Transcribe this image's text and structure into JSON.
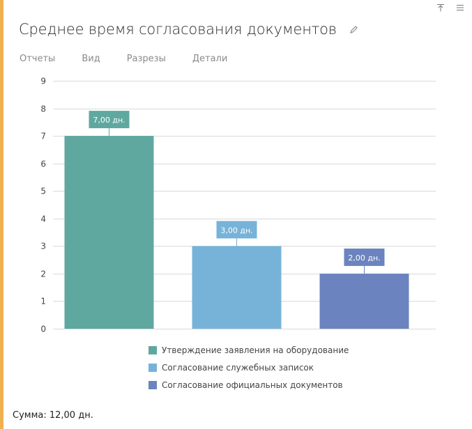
{
  "header": {
    "title": "Среднее время согласования документов"
  },
  "toolbar": {
    "pin_icon": "pin-up-icon",
    "menu_icon": "hamburger-menu-icon",
    "edit_icon": "pencil-icon"
  },
  "menu": {
    "items": [
      "Отчеты",
      "Вид",
      "Разрезы",
      "Детали"
    ]
  },
  "chart_data": {
    "type": "bar",
    "categories": [
      "Утверждение заявления на оборудование",
      "Согласование служебных записок",
      "Согласование официальных документов"
    ],
    "values": [
      7,
      3,
      2
    ],
    "data_labels": [
      "7,00 дн.",
      "3,00 дн.",
      "2,00 дн."
    ],
    "colors": [
      "#5fa8a0",
      "#77b3d9",
      "#6b84bf"
    ],
    "ylim": [
      0,
      9
    ],
    "yticks": [
      "0",
      "1",
      "2",
      "3",
      "4",
      "5",
      "6",
      "7",
      "8",
      "9"
    ],
    "grid": true,
    "legend_position": "bottom",
    "xlabel": "",
    "ylabel": ""
  },
  "footer": {
    "sum_label": "Сумма: 12,00 дн."
  },
  "colors": {
    "accent": "#f0b04f",
    "grid": "#d9d9d9",
    "axis_text": "#444444"
  }
}
